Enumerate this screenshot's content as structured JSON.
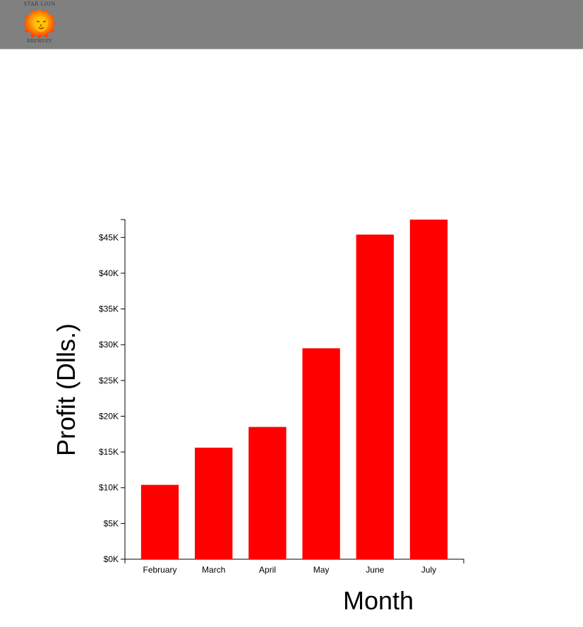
{
  "header": {
    "logo": {
      "text_top": "STAR LION",
      "text_bottom": "BREWERY",
      "icon": "lion-head-icon"
    },
    "background_color": "#808080"
  },
  "chart_data": {
    "type": "bar",
    "title": "",
    "xlabel": "Month",
    "ylabel": "Profit (Dlls.)",
    "categories": [
      "February",
      "March",
      "April",
      "May",
      "June",
      "July"
    ],
    "values": [
      10400,
      15600,
      18500,
      29500,
      45400,
      47500
    ],
    "ylim": [
      0,
      47500
    ],
    "yticks": [
      0,
      5000,
      10000,
      15000,
      20000,
      25000,
      30000,
      35000,
      40000,
      45000
    ],
    "ytick_labels": [
      "$0K",
      "$5K",
      "$10K",
      "$15K",
      "$20K",
      "$25K",
      "$30K",
      "$35K",
      "$40K",
      "$45K"
    ],
    "bar_color": "#ff0000",
    "grid": false,
    "legend": "none"
  }
}
